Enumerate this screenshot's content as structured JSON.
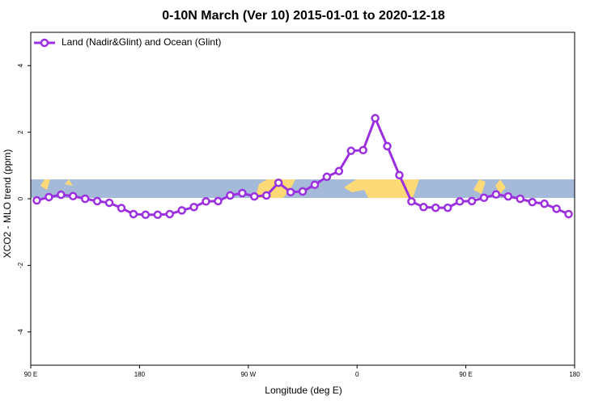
{
  "chart_data": {
    "type": "line",
    "title": "0-10N March (Ver 10)   2015-01-01 to 2020-12-18",
    "xlabel": "Longitude (deg E)",
    "ylabel": "XCO2 - MLO trend (ppm)",
    "x": [
      95,
      105,
      115,
      125,
      135,
      145,
      155,
      165,
      175,
      185,
      195,
      205,
      215,
      225,
      235,
      245,
      255,
      265,
      275,
      285,
      295,
      305,
      315,
      325,
      335,
      345,
      355,
      365,
      375,
      385,
      395,
      405,
      415,
      425,
      435,
      445,
      455,
      465,
      475,
      485,
      495,
      505,
      515,
      525,
      535
    ],
    "series": [
      {
        "name": "Land (Nadir&Glint) and Ocean (Glint)",
        "color": "#9b30e0",
        "values": [
          -0.05,
          0.05,
          0.12,
          0.08,
          0.0,
          -0.07,
          -0.12,
          -0.28,
          -0.46,
          -0.48,
          -0.48,
          -0.46,
          -0.35,
          -0.25,
          -0.08,
          -0.07,
          0.1,
          0.17,
          0.07,
          0.1,
          0.48,
          0.2,
          0.22,
          0.42,
          0.66,
          0.83,
          1.44,
          1.46,
          2.42,
          1.58,
          0.71,
          -0.08,
          -0.25,
          -0.27,
          -0.27,
          -0.08,
          -0.07,
          0.03,
          0.13,
          0.07,
          0.0,
          -0.1,
          -0.15,
          -0.3,
          -0.46
        ]
      }
    ],
    "xlim": [
      90,
      540
    ],
    "xticks": [
      {
        "value": 90,
        "label": "90 E"
      },
      {
        "value": 180,
        "label": "180"
      },
      {
        "value": 270,
        "label": "90 W"
      },
      {
        "value": 360,
        "label": "0"
      },
      {
        "value": 450,
        "label": "90 E"
      },
      {
        "value": 540,
        "label": "180"
      }
    ],
    "ylim": [
      -5,
      5
    ],
    "yticks": [
      -4,
      -2,
      0,
      2,
      4
    ],
    "legend": "top-left"
  }
}
